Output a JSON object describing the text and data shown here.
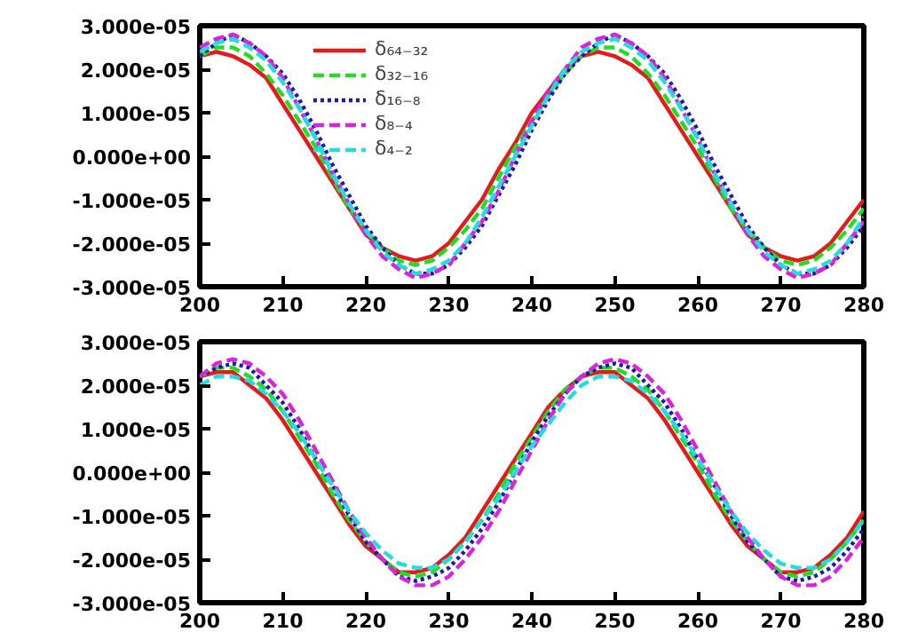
{
  "chart_data": [
    {
      "type": "line",
      "legend": "top left",
      "grid": false,
      "xlim": [
        200,
        280
      ],
      "ylim": [
        -3e-05,
        3e-05
      ],
      "xticks": [
        200,
        210,
        220,
        230,
        240,
        250,
        260,
        270,
        280
      ],
      "yticks": [
        {
          "value": -3e-05,
          "label": "-3.000e-05"
        },
        {
          "value": -2e-05,
          "label": "-2.000e-05"
        },
        {
          "value": -1e-05,
          "label": "-1.000e-05"
        },
        {
          "value": 0,
          "label": "0.000e+00"
        },
        {
          "value": 1e-05,
          "label": "1.000e-05"
        },
        {
          "value": 2e-05,
          "label": "2.000e-05"
        },
        {
          "value": 3e-05,
          "label": "3.000e-05"
        }
      ],
      "x": [
        200,
        202,
        204,
        206,
        208,
        210,
        212,
        214,
        216,
        218,
        220,
        222,
        224,
        226,
        228,
        230,
        232,
        234,
        236,
        238,
        240,
        242,
        244,
        246,
        248,
        250,
        252,
        254,
        256,
        258,
        260,
        262,
        264,
        266,
        268,
        270,
        272,
        274,
        276,
        278,
        280
      ],
      "series": [
        {
          "name": "δ₆₄₋₃₂",
          "color": "#e41a1c",
          "line_style": "solid",
          "values": [
            2.3e-05,
            2.4e-05,
            2.3e-05,
            2.1e-05,
            1.8e-05,
            1.2e-05,
            6e-06,
            0,
            -6e-06,
            -1.2e-05,
            -1.8e-05,
            -2.1e-05,
            -2.3e-05,
            -2.4e-05,
            -2.3e-05,
            -2e-05,
            -1.5e-05,
            -1e-05,
            -3e-06,
            3e-06,
            1e-05,
            1.5e-05,
            2e-05,
            2.3e-05,
            2.4e-05,
            2.3e-05,
            2.1e-05,
            1.8e-05,
            1.2e-05,
            6e-06,
            0,
            -6e-06,
            -1.2e-05,
            -1.8e-05,
            -2.1e-05,
            -2.3e-05,
            -2.4e-05,
            -2.3e-05,
            -2e-05,
            -1.5e-05,
            -1e-05
          ]
        },
        {
          "name": "δ₃₂₋₁₆",
          "color": "#22dd22",
          "line_style": "dashed",
          "values": [
            2.3e-05,
            2.5e-05,
            2.5e-05,
            2.3e-05,
            1.9e-05,
            1.4e-05,
            8e-06,
            2e-06,
            -5e-06,
            -1.2e-05,
            -1.7e-05,
            -2.1e-05,
            -2.4e-05,
            -2.5e-05,
            -2.4e-05,
            -2.1e-05,
            -1.7e-05,
            -1.2e-05,
            -5e-06,
            2e-06,
            8e-06,
            1.4e-05,
            1.9e-05,
            2.3e-05,
            2.5e-05,
            2.5e-05,
            2.3e-05,
            1.9e-05,
            1.4e-05,
            8e-06,
            2e-06,
            -5e-06,
            -1.2e-05,
            -1.7e-05,
            -2.1e-05,
            -2.4e-05,
            -2.5e-05,
            -2.4e-05,
            -2.1e-05,
            -1.7e-05,
            -1.2e-05
          ]
        },
        {
          "name": "δ₁₆₋₈",
          "color": "#1a1ab0",
          "line_style": "dotted",
          "values": [
            2.3e-05,
            2.6e-05,
            2.8e-05,
            2.6e-05,
            2.3e-05,
            1.9e-05,
            1.3e-05,
            6e-06,
            -2e-06,
            -9e-06,
            -1.6e-05,
            -2.1e-05,
            -2.5e-05,
            -2.7e-05,
            -2.7e-05,
            -2.5e-05,
            -2.1e-05,
            -1.6e-05,
            -9e-06,
            -2e-06,
            6e-06,
            1.3e-05,
            1.9e-05,
            2.3e-05,
            2.6e-05,
            2.8e-05,
            2.6e-05,
            2.3e-05,
            1.9e-05,
            1.3e-05,
            6e-06,
            -2e-06,
            -9e-06,
            -1.6e-05,
            -2.1e-05,
            -2.5e-05,
            -2.7e-05,
            -2.7e-05,
            -2.5e-05,
            -2.1e-05,
            -1.6e-05
          ]
        },
        {
          "name": "δ₈₋₄",
          "color": "#dd22dd",
          "line_style": "dashed",
          "values": [
            2.5e-05,
            2.7e-05,
            2.8e-05,
            2.6e-05,
            2.3e-05,
            1.8e-05,
            1.1e-05,
            4e-06,
            -4e-06,
            -1.1e-05,
            -1.8e-05,
            -2.3e-05,
            -2.6e-05,
            -2.8e-05,
            -2.7e-05,
            -2.5e-05,
            -2e-05,
            -1.5e-05,
            -8e-06,
            0,
            8e-06,
            1.5e-05,
            2e-05,
            2.5e-05,
            2.7e-05,
            2.8e-05,
            2.6e-05,
            2.3e-05,
            1.8e-05,
            1.1e-05,
            4e-06,
            -4e-06,
            -1.1e-05,
            -1.8e-05,
            -2.3e-05,
            -2.6e-05,
            -2.8e-05,
            -2.7e-05,
            -2.5e-05,
            -2e-05,
            -1.5e-05
          ]
        },
        {
          "name": "δ₄₋₂",
          "color": "#22dddd",
          "line_style": "dashed",
          "values": [
            2.4e-05,
            2.6e-05,
            2.7e-05,
            2.5e-05,
            2.2e-05,
            1.7e-05,
            1.1e-05,
            4e-06,
            -4e-06,
            -1.1e-05,
            -1.7e-05,
            -2.2e-05,
            -2.5e-05,
            -2.7e-05,
            -2.6e-05,
            -2.4e-05,
            -2e-05,
            -1.4e-05,
            -7e-06,
            0,
            7e-06,
            1.4e-05,
            2e-05,
            2.4e-05,
            2.6e-05,
            2.7e-05,
            2.5e-05,
            2.2e-05,
            1.7e-05,
            1.1e-05,
            4e-06,
            -4e-06,
            -1.1e-05,
            -1.7e-05,
            -2.2e-05,
            -2.5e-05,
            -2.7e-05,
            -2.6e-05,
            -2.4e-05,
            -2e-05,
            -1.4e-05
          ]
        }
      ]
    },
    {
      "type": "line",
      "grid": false,
      "xlim": [
        200,
        280
      ],
      "ylim": [
        -3e-05,
        3e-05
      ],
      "xticks": [
        200,
        210,
        220,
        230,
        240,
        250,
        260,
        270,
        280
      ],
      "yticks": [
        {
          "value": -3e-05,
          "label": "-3.000e-05"
        },
        {
          "value": -2e-05,
          "label": "-2.000e-05"
        },
        {
          "value": -1e-05,
          "label": "-1.000e-05"
        },
        {
          "value": 0,
          "label": "0.000e+00"
        },
        {
          "value": 1e-05,
          "label": "1.000e-05"
        },
        {
          "value": 2e-05,
          "label": "2.000e-05"
        },
        {
          "value": 3e-05,
          "label": "3.000e-05"
        }
      ],
      "x": [
        200,
        202,
        204,
        206,
        208,
        210,
        212,
        214,
        216,
        218,
        220,
        222,
        224,
        226,
        228,
        230,
        232,
        234,
        236,
        238,
        240,
        242,
        244,
        246,
        248,
        250,
        252,
        254,
        256,
        258,
        260,
        262,
        264,
        266,
        268,
        270,
        272,
        274,
        276,
        278,
        280
      ],
      "series": [
        {
          "color": "#e41a1c",
          "line_style": "solid",
          "values": [
            2.2e-05,
            2.3e-05,
            2.3e-05,
            2e-05,
            1.7e-05,
            1.2e-05,
            6e-06,
            0,
            -6e-06,
            -1.2e-05,
            -1.7e-05,
            -2e-05,
            -2.3e-05,
            -2.3e-05,
            -2.2e-05,
            -1.9e-05,
            -1.5e-05,
            -9e-06,
            -3e-06,
            3e-06,
            9e-06,
            1.5e-05,
            1.9e-05,
            2.2e-05,
            2.3e-05,
            2.3e-05,
            2e-05,
            1.7e-05,
            1.2e-05,
            6e-06,
            0,
            -6e-06,
            -1.2e-05,
            -1.7e-05,
            -2e-05,
            -2.3e-05,
            -2.3e-05,
            -2.2e-05,
            -1.9e-05,
            -1.5e-05,
            -9e-06
          ]
        },
        {
          "color": "#22dd22",
          "line_style": "dashed",
          "values": [
            2.2e-05,
            2.4e-05,
            2.4e-05,
            2.2e-05,
            1.9e-05,
            1.4e-05,
            8e-06,
            2e-06,
            -5e-06,
            -1.1e-05,
            -1.6e-05,
            -2e-05,
            -2.3e-05,
            -2.4e-05,
            -2.3e-05,
            -2e-05,
            -1.6e-05,
            -1.1e-05,
            -5e-06,
            2e-06,
            8e-06,
            1.4e-05,
            1.9e-05,
            2.2e-05,
            2.4e-05,
            2.4e-05,
            2.2e-05,
            1.9e-05,
            1.4e-05,
            8e-06,
            2e-06,
            -5e-06,
            -1.1e-05,
            -1.6e-05,
            -2e-05,
            -2.3e-05,
            -2.4e-05,
            -2.3e-05,
            -2e-05,
            -1.6e-05,
            -1.1e-05
          ]
        },
        {
          "color": "#1a1ab0",
          "line_style": "dotted",
          "values": [
            2.2e-05,
            2.4e-05,
            2.5e-05,
            2.4e-05,
            2e-05,
            1.6e-05,
            1e-05,
            3e-06,
            -3e-06,
            -1e-05,
            -1.6e-05,
            -2e-05,
            -2.4e-05,
            -2.5e-05,
            -2.4e-05,
            -2.2e-05,
            -1.8e-05,
            -1.3e-05,
            -7e-06,
            0,
            7e-06,
            1.3e-05,
            1.8e-05,
            2.2e-05,
            2.4e-05,
            2.5e-05,
            2.4e-05,
            2e-05,
            1.6e-05,
            1e-05,
            3e-06,
            -3e-06,
            -1e-05,
            -1.6e-05,
            -2e-05,
            -2.4e-05,
            -2.5e-05,
            -2.4e-05,
            -2.2e-05,
            -1.8e-05,
            -1.3e-05
          ]
        },
        {
          "color": "#dd22dd",
          "line_style": "dashed",
          "values": [
            2.2e-05,
            2.5e-05,
            2.6e-05,
            2.5e-05,
            2.2e-05,
            1.8e-05,
            1.2e-05,
            5e-06,
            -2e-06,
            -9e-06,
            -1.5e-05,
            -2e-05,
            -2.4e-05,
            -2.6e-05,
            -2.6e-05,
            -2.4e-05,
            -2e-05,
            -1.5e-05,
            -9e-06,
            -2e-06,
            5e-06,
            1.2e-05,
            1.8e-05,
            2.2e-05,
            2.5e-05,
            2.6e-05,
            2.5e-05,
            2.2e-05,
            1.8e-05,
            1.2e-05,
            5e-06,
            -2e-06,
            -9e-06,
            -1.5e-05,
            -2e-05,
            -2.4e-05,
            -2.6e-05,
            -2.6e-05,
            -2.4e-05,
            -2e-05,
            -1.5e-05
          ]
        },
        {
          "color": "#22dddd",
          "line_style": "dashed",
          "values": [
            2e-05,
            2.2e-05,
            2.2e-05,
            2.1e-05,
            1.8e-05,
            1.4e-05,
            9e-06,
            3e-06,
            -3e-06,
            -9e-06,
            -1.4e-05,
            -1.8e-05,
            -2.1e-05,
            -2.2e-05,
            -2.2e-05,
            -2e-05,
            -1.6e-05,
            -1.1e-05,
            -6e-06,
            0,
            6e-06,
            1.1e-05,
            1.6e-05,
            2e-05,
            2.2e-05,
            2.2e-05,
            2.1e-05,
            1.8e-05,
            1.4e-05,
            9e-06,
            3e-06,
            -3e-06,
            -9e-06,
            -1.4e-05,
            -1.8e-05,
            -2.1e-05,
            -2.2e-05,
            -2.2e-05,
            -2e-05,
            -1.6e-05,
            -1.1e-05
          ]
        }
      ]
    }
  ]
}
